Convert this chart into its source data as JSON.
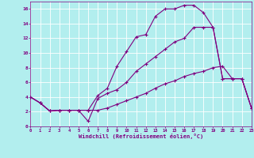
{
  "line1_x": [
    0,
    1,
    2,
    3,
    4,
    5,
    6,
    7,
    8,
    9,
    10,
    11,
    12,
    13,
    14,
    15,
    16,
    17,
    18,
    19,
    20,
    21,
    22,
    23
  ],
  "line1_y": [
    4.0,
    3.2,
    2.1,
    2.2,
    2.2,
    2.2,
    2.2,
    4.2,
    5.2,
    8.2,
    10.2,
    12.2,
    12.5,
    15.0,
    16.0,
    16.0,
    16.5,
    16.5,
    15.5,
    13.5,
    6.5,
    6.5,
    6.5,
    2.5
  ],
  "line2_x": [
    0,
    1,
    2,
    3,
    4,
    5,
    6,
    7,
    8,
    9,
    10,
    11,
    12,
    13,
    14,
    15,
    16,
    17,
    18,
    19,
    20,
    21,
    22,
    23
  ],
  "line2_y": [
    4.0,
    3.2,
    2.1,
    2.2,
    2.2,
    2.2,
    0.7,
    3.8,
    4.5,
    5.0,
    6.0,
    7.5,
    8.5,
    9.5,
    10.5,
    11.5,
    12.0,
    13.5,
    13.5,
    13.5,
    6.5,
    6.5,
    6.5,
    2.5
  ],
  "line3_x": [
    0,
    1,
    2,
    3,
    4,
    5,
    6,
    7,
    8,
    9,
    10,
    11,
    12,
    13,
    14,
    15,
    16,
    17,
    18,
    19,
    20,
    21,
    22,
    23
  ],
  "line3_y": [
    4.0,
    3.2,
    2.1,
    2.2,
    2.2,
    2.2,
    2.2,
    2.2,
    2.5,
    3.0,
    3.5,
    4.0,
    4.5,
    5.2,
    5.8,
    6.2,
    6.8,
    7.2,
    7.5,
    8.0,
    8.2,
    6.5,
    6.5,
    2.5
  ],
  "line_color": "#800080",
  "bg_color": "#b2eeee",
  "grid_color": "#ffffff",
  "xlabel": "Windchill (Refroidissement éolien,°C)",
  "xlim": [
    0,
    23
  ],
  "ylim": [
    0,
    17
  ],
  "xticks": [
    0,
    1,
    2,
    3,
    4,
    5,
    6,
    7,
    8,
    9,
    10,
    11,
    12,
    13,
    14,
    15,
    16,
    17,
    18,
    19,
    20,
    21,
    22,
    23
  ],
  "yticks": [
    0,
    2,
    4,
    6,
    8,
    10,
    12,
    14,
    16
  ],
  "marker": "+"
}
